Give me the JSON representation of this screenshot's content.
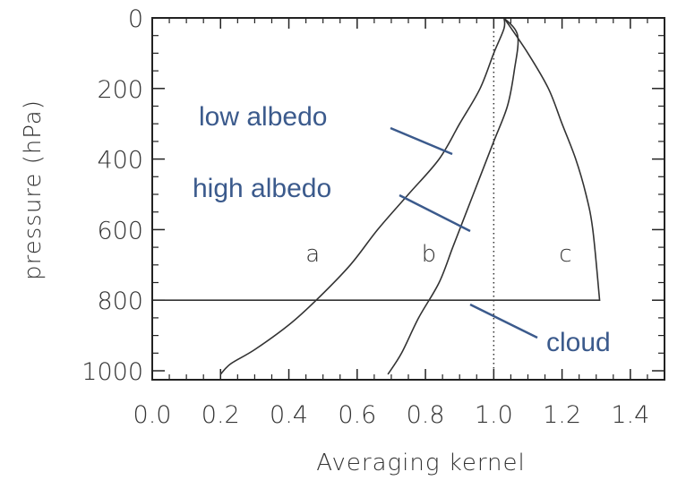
{
  "chart_data": {
    "type": "line",
    "title": "",
    "xlabel": "Averaging kernel",
    "ylabel": "pressure (hPa)",
    "xlim": [
      0.0,
      1.5
    ],
    "ylim": [
      1000,
      0
    ],
    "x_ticks": [
      "0.0",
      "0.2",
      "0.4",
      "0.6",
      "0.8",
      "1.0",
      "1.2",
      "1.4"
    ],
    "y_ticks": [
      "0",
      "200",
      "400",
      "600",
      "800",
      "1000"
    ],
    "grid": false,
    "series": [
      {
        "name": "low albedo",
        "x": [
          0.2,
          0.23,
          0.3,
          0.4,
          0.48,
          0.58,
          0.66,
          0.75,
          0.84,
          0.9,
          0.96,
          1.0,
          1.03,
          1.03
        ],
        "y": [
          1010,
          980,
          940,
          870,
          800,
          700,
          600,
          500,
          400,
          300,
          200,
          100,
          30,
          0
        ]
      },
      {
        "name": "high albedo",
        "x": [
          0.69,
          0.73,
          0.78,
          0.84,
          0.88,
          0.92,
          0.96,
          1.0,
          1.04,
          1.06,
          1.07,
          1.03
        ],
        "y": [
          1010,
          950,
          850,
          750,
          650,
          550,
          450,
          350,
          250,
          150,
          50,
          0
        ]
      },
      {
        "name": "cloud",
        "x": [
          1.03,
          1.1,
          1.16,
          1.2,
          1.24,
          1.27,
          1.29,
          1.31,
          0.0
        ],
        "y": [
          0,
          100,
          200,
          300,
          400,
          500,
          600,
          800,
          800
        ]
      }
    ],
    "vline": {
      "x": 1.0,
      "style": "dotted"
    },
    "region_labels": [
      {
        "text": "a",
        "x": 0.47,
        "y": 670
      },
      {
        "text": "b",
        "x": 0.81,
        "y": 670
      },
      {
        "text": "c",
        "x": 1.21,
        "y": 670
      }
    ],
    "annotations": [
      {
        "text": "low albedo",
        "series": "low albedo"
      },
      {
        "text": "high albedo",
        "series": "high albedo"
      },
      {
        "text": "cloud",
        "series": "cloud"
      }
    ],
    "colors": {
      "axis": "#222222",
      "line": "#333333",
      "annotation": "#3b5a8c"
    }
  }
}
